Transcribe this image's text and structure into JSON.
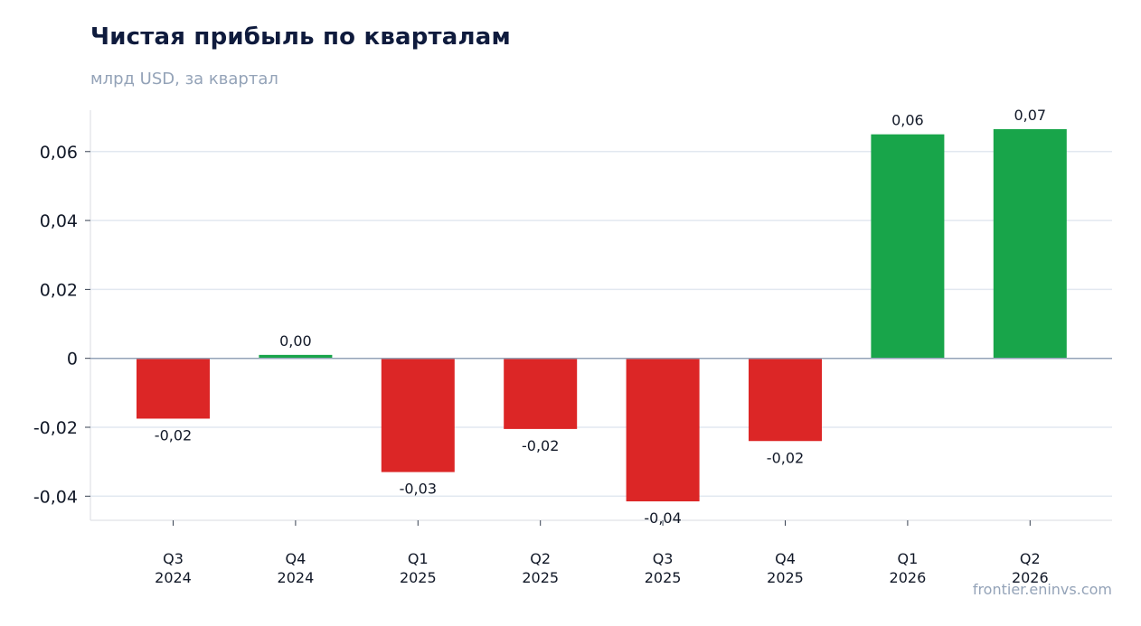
{
  "header": {
    "title": "Чистая прибыль по кварталам",
    "subtitle": "млрд USD, за квартал"
  },
  "watermark": "frontier.eninvs.com",
  "colors": {
    "positive": "#18a54a",
    "negative": "#dc2626",
    "grid": "#e2e8f0",
    "zero_line": "#94a3b8",
    "axis": "#e5e7eb"
  },
  "chart_data": {
    "type": "bar",
    "title": "Чистая прибыль по кварталам",
    "subtitle": "млрд USD, за квартал",
    "categories": [
      [
        "Q3",
        "2024"
      ],
      [
        "Q4",
        "2024"
      ],
      [
        "Q1",
        "2025"
      ],
      [
        "Q2",
        "2025"
      ],
      [
        "Q3",
        "2025"
      ],
      [
        "Q4",
        "2025"
      ],
      [
        "Q1",
        "2026"
      ],
      [
        "Q2",
        "2026"
      ]
    ],
    "values": [
      -0.0175,
      0.001,
      -0.033,
      -0.0205,
      -0.0415,
      -0.024,
      0.065,
      0.0665
    ],
    "data_labels": [
      "-0,02",
      "0,00",
      "-0,03",
      "-0,02",
      "-0,04",
      "-0,02",
      "0,06",
      "0,07"
    ],
    "yticks": [
      -0.04,
      -0.02,
      0,
      0.02,
      0.04,
      0.06
    ],
    "ytick_labels": [
      "-0,04",
      "-0,02",
      "0",
      "0,02",
      "0,04",
      "0,06"
    ],
    "ylim": [
      -0.047,
      0.072
    ],
    "grid": true,
    "legend": "none"
  }
}
